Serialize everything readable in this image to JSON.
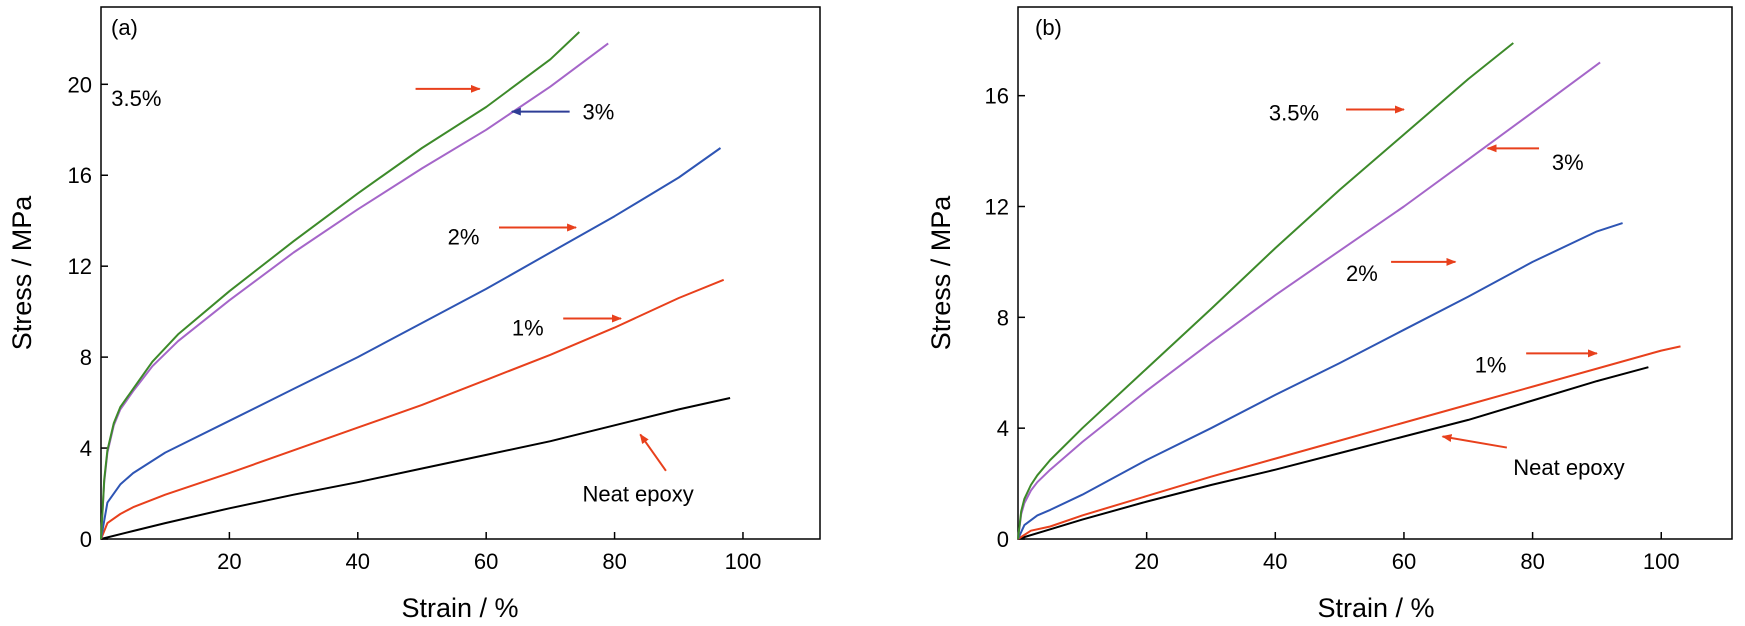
{
  "chart_data": [
    {
      "type": "line",
      "panel_label": "(a)",
      "xlabel": "Strain / %",
      "ylabel": "Stress / MPa",
      "xlim": [
        0,
        112
      ],
      "ylim": [
        0,
        23.4
      ],
      "xticks": [
        20,
        40,
        60,
        80,
        100
      ],
      "yticks": [
        0,
        4,
        8,
        12,
        16,
        20
      ],
      "grid": false,
      "legend": "none",
      "series": [
        {
          "name": "Neat epoxy",
          "color": "#000000",
          "x": [
            0,
            5,
            10,
            20,
            30,
            40,
            50,
            60,
            70,
            80,
            90,
            98
          ],
          "y": [
            0,
            0.35,
            0.7,
            1.35,
            1.95,
            2.5,
            3.1,
            3.7,
            4.3,
            5.0,
            5.7,
            6.2
          ]
        },
        {
          "name": "1%",
          "color": "#e8401c",
          "x": [
            0,
            1,
            3,
            5,
            10,
            20,
            30,
            40,
            50,
            60,
            70,
            80,
            90,
            97
          ],
          "y": [
            0,
            0.7,
            1.1,
            1.4,
            1.95,
            2.9,
            3.9,
            4.9,
            5.9,
            7.0,
            8.1,
            9.3,
            10.6,
            11.4
          ]
        },
        {
          "name": "2%",
          "color": "#2e55b4",
          "x": [
            0,
            1,
            3,
            5,
            10,
            20,
            30,
            40,
            50,
            60,
            70,
            80,
            90,
            96.5
          ],
          "y": [
            0,
            1.6,
            2.4,
            2.9,
            3.8,
            5.2,
            6.6,
            8.0,
            9.5,
            11.0,
            12.6,
            14.2,
            15.9,
            17.2
          ]
        },
        {
          "name": "3%",
          "color": "#a566c9",
          "x": [
            0,
            0.5,
            1,
            2,
            3,
            5,
            8,
            12,
            20,
            30,
            40,
            50,
            60,
            70,
            79
          ],
          "y": [
            0,
            2.5,
            3.8,
            5.0,
            5.7,
            6.5,
            7.6,
            8.7,
            10.5,
            12.6,
            14.5,
            16.3,
            18.0,
            19.9,
            21.8
          ]
        },
        {
          "name": "3.5%",
          "color": "#3d8a2a",
          "x": [
            0,
            0.5,
            1,
            2,
            3,
            5,
            8,
            12,
            20,
            30,
            40,
            50,
            60,
            70,
            74.5
          ],
          "y": [
            0,
            2.6,
            3.9,
            5.1,
            5.8,
            6.6,
            7.8,
            9.0,
            10.9,
            13.1,
            15.2,
            17.2,
            19.0,
            21.1,
            22.3
          ]
        }
      ],
      "annotations": [
        {
          "text": "3.5%",
          "tx": 1.6,
          "ty": 19.4,
          "ax1": 49,
          "ay1": 19.8,
          "ax2": 59,
          "ay2": 19.8,
          "color": "#e8401c"
        },
        {
          "text": "3%",
          "tx": 75,
          "ty": 18.8,
          "ax1": 73,
          "ay1": 18.8,
          "ax2": 64,
          "ay2": 18.8,
          "color": "#2e3d96"
        },
        {
          "text": "2%",
          "tx": 54,
          "ty": 13.3,
          "ax1": 62,
          "ay1": 13.7,
          "ax2": 74,
          "ay2": 13.7,
          "color": "#e8401c"
        },
        {
          "text": "1%",
          "tx": 64,
          "ty": 9.3,
          "ax1": 72,
          "ay1": 9.7,
          "ax2": 81,
          "ay2": 9.7,
          "color": "#e8401c"
        },
        {
          "text": "Neat epoxy",
          "tx": 75,
          "ty": 2.0,
          "ax1": 88,
          "ay1": 3.0,
          "ax2": 84,
          "ay2": 4.6,
          "color": "#e8401c"
        }
      ]
    },
    {
      "type": "line",
      "panel_label": "(b)",
      "xlabel": "Strain / %",
      "ylabel": "Stress / MPa",
      "xlim": [
        0,
        111
      ],
      "ylim": [
        0,
        19.2
      ],
      "xticks": [
        20,
        40,
        60,
        80,
        100
      ],
      "yticks": [
        0,
        4,
        8,
        12,
        16
      ],
      "grid": false,
      "legend": "none",
      "series": [
        {
          "name": "Neat epoxy",
          "color": "#000000",
          "x": [
            0,
            5,
            10,
            20,
            30,
            40,
            50,
            60,
            70,
            80,
            90,
            98
          ],
          "y": [
            0,
            0.35,
            0.7,
            1.35,
            1.95,
            2.5,
            3.1,
            3.7,
            4.3,
            5.0,
            5.7,
            6.2
          ]
        },
        {
          "name": "1%",
          "color": "#e8401c",
          "x": [
            0,
            2,
            5,
            10,
            20,
            30,
            40,
            50,
            60,
            70,
            80,
            90,
            100,
            103
          ],
          "y": [
            0,
            0.3,
            0.45,
            0.85,
            1.55,
            2.25,
            2.9,
            3.55,
            4.2,
            4.85,
            5.5,
            6.15,
            6.8,
            6.95
          ]
        },
        {
          "name": "2%",
          "color": "#2e55b4",
          "x": [
            0,
            1,
            3,
            5,
            10,
            20,
            30,
            40,
            50,
            60,
            70,
            80,
            90,
            94
          ],
          "y": [
            0,
            0.5,
            0.85,
            1.05,
            1.6,
            2.85,
            4.0,
            5.2,
            6.35,
            7.55,
            8.75,
            10.0,
            11.1,
            11.4
          ]
        },
        {
          "name": "3%",
          "color": "#a566c9",
          "x": [
            0,
            0.5,
            1,
            2,
            3,
            5,
            10,
            20,
            30,
            40,
            50,
            60,
            70,
            80,
            90.5
          ],
          "y": [
            0,
            0.9,
            1.3,
            1.75,
            2.05,
            2.5,
            3.5,
            5.35,
            7.1,
            8.8,
            10.4,
            12.0,
            13.7,
            15.4,
            17.2
          ]
        },
        {
          "name": "3.5%",
          "color": "#3d8a2a",
          "x": [
            0,
            0.5,
            1,
            2,
            3,
            5,
            10,
            20,
            30,
            40,
            50,
            60,
            70,
            77
          ],
          "y": [
            0,
            1.0,
            1.45,
            1.95,
            2.3,
            2.85,
            4.0,
            6.15,
            8.3,
            10.5,
            12.6,
            14.6,
            16.6,
            17.9
          ]
        }
      ],
      "annotations": [
        {
          "text": "3.5%",
          "tx": 39,
          "ty": 15.4,
          "ax1": 51,
          "ay1": 15.5,
          "ax2": 60,
          "ay2": 15.5,
          "color": "#e8401c"
        },
        {
          "text": "3%",
          "tx": 83,
          "ty": 13.6,
          "ax1": 81,
          "ay1": 14.1,
          "ax2": 73,
          "ay2": 14.1,
          "color": "#e8401c"
        },
        {
          "text": "2%",
          "tx": 51,
          "ty": 9.6,
          "ax1": 58,
          "ay1": 10.0,
          "ax2": 68,
          "ay2": 10.0,
          "color": "#e8401c"
        },
        {
          "text": "1%",
          "tx": 71,
          "ty": 6.3,
          "ax1": 79,
          "ay1": 6.7,
          "ax2": 90,
          "ay2": 6.7,
          "color": "#e8401c"
        },
        {
          "text": "Neat epoxy",
          "tx": 77,
          "ty": 2.6,
          "ax1": 76,
          "ay1": 3.3,
          "ax2": 66,
          "ay2": 3.7,
          "color": "#e8401c"
        }
      ]
    }
  ]
}
